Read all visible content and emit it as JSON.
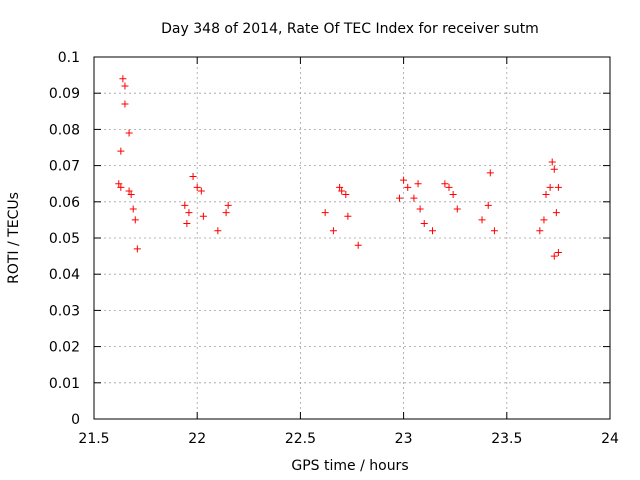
{
  "chart_data": {
    "type": "scatter",
    "title": "Day 348 of 2014, Rate Of TEC Index for receiver sutm",
    "xlabel": "GPS time / hours",
    "ylabel": "ROTI / TECUs",
    "xlim": [
      21.5,
      24
    ],
    "ylim": [
      0,
      0.1
    ],
    "xticks": [
      21.5,
      22,
      22.5,
      23,
      23.5,
      24
    ],
    "xtick_labels": [
      "21.5",
      "22",
      "22.5",
      "23",
      "23.5",
      "24"
    ],
    "yticks": [
      0,
      0.01,
      0.02,
      0.03,
      0.04,
      0.05,
      0.06,
      0.07,
      0.08,
      0.09,
      0.1
    ],
    "ytick_labels": [
      "0",
      "0.01",
      "0.02",
      "0.03",
      "0.04",
      "0.05",
      "0.06",
      "0.07",
      "0.08",
      "0.09",
      "0.1"
    ],
    "grid": true,
    "marker": "+",
    "marker_color": "#ff0000",
    "series": [
      {
        "name": "ROTI",
        "points": [
          [
            21.64,
            0.094
          ],
          [
            21.65,
            0.092
          ],
          [
            21.65,
            0.087
          ],
          [
            21.67,
            0.079
          ],
          [
            21.63,
            0.074
          ],
          [
            21.62,
            0.065
          ],
          [
            21.63,
            0.064
          ],
          [
            21.67,
            0.063
          ],
          [
            21.68,
            0.062
          ],
          [
            21.69,
            0.058
          ],
          [
            21.7,
            0.055
          ],
          [
            21.71,
            0.047
          ],
          [
            21.98,
            0.067
          ],
          [
            22.0,
            0.064
          ],
          [
            22.02,
            0.063
          ],
          [
            21.94,
            0.059
          ],
          [
            21.96,
            0.057
          ],
          [
            22.03,
            0.056
          ],
          [
            22.1,
            0.052
          ],
          [
            22.15,
            0.059
          ],
          [
            22.14,
            0.057
          ],
          [
            21.95,
            0.054
          ],
          [
            22.69,
            0.064
          ],
          [
            22.7,
            0.063
          ],
          [
            22.72,
            0.062
          ],
          [
            22.62,
            0.057
          ],
          [
            22.73,
            0.056
          ],
          [
            22.66,
            0.052
          ],
          [
            22.78,
            0.048
          ],
          [
            23.0,
            0.066
          ],
          [
            23.02,
            0.064
          ],
          [
            23.05,
            0.061
          ],
          [
            23.07,
            0.065
          ],
          [
            22.98,
            0.061
          ],
          [
            23.08,
            0.058
          ],
          [
            23.1,
            0.054
          ],
          [
            23.14,
            0.052
          ],
          [
            23.2,
            0.065
          ],
          [
            23.22,
            0.064
          ],
          [
            23.24,
            0.062
          ],
          [
            23.26,
            0.058
          ],
          [
            23.42,
            0.068
          ],
          [
            23.41,
            0.059
          ],
          [
            23.38,
            0.055
          ],
          [
            23.44,
            0.052
          ],
          [
            23.72,
            0.071
          ],
          [
            23.73,
            0.069
          ],
          [
            23.71,
            0.064
          ],
          [
            23.75,
            0.064
          ],
          [
            23.69,
            0.062
          ],
          [
            23.74,
            0.057
          ],
          [
            23.68,
            0.055
          ],
          [
            23.66,
            0.052
          ],
          [
            23.75,
            0.046
          ],
          [
            23.73,
            0.045
          ]
        ]
      }
    ]
  }
}
